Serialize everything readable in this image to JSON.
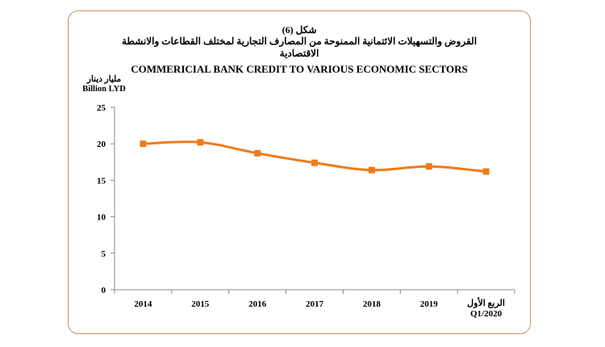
{
  "figure": {
    "number": "شكل (6)",
    "title_ar_line1": "القروض والتسهيلات الائتمانية الممنوحة من المصارف التجارية لمختلف القطاعات والانشطة",
    "title_ar_line2": "الاقتصادية",
    "title_en": "COMMERICIAL BANK CREDIT TO VARIOUS ECONOMIC SECTORS"
  },
  "unit": {
    "ar": "مليار دينار",
    "en": "Billion LYD"
  },
  "colors": {
    "line": "#f07a1a",
    "marker": "#f07a1a",
    "frame": "#c9906a",
    "axis": "#888888"
  },
  "chart_data": {
    "type": "line",
    "title": "COMMERICIAL BANK CREDIT TO VARIOUS ECONOMIC SECTORS",
    "ylabel": "Billion LYD",
    "xlabel": "",
    "categories": [
      "2014",
      "2015",
      "2016",
      "2017",
      "2018",
      "2019",
      "Q1/2020"
    ],
    "category_labels_extra": {
      "Q1/2020": "الربع الأول"
    },
    "series": [
      {
        "values": [
          20.0,
          20.2,
          18.7,
          17.4,
          16.4,
          16.9,
          16.2
        ]
      }
    ],
    "ylim": [
      0,
      25
    ],
    "yticks": [
      0,
      5,
      10,
      15,
      20,
      25
    ],
    "grid": false,
    "legend": "none"
  }
}
